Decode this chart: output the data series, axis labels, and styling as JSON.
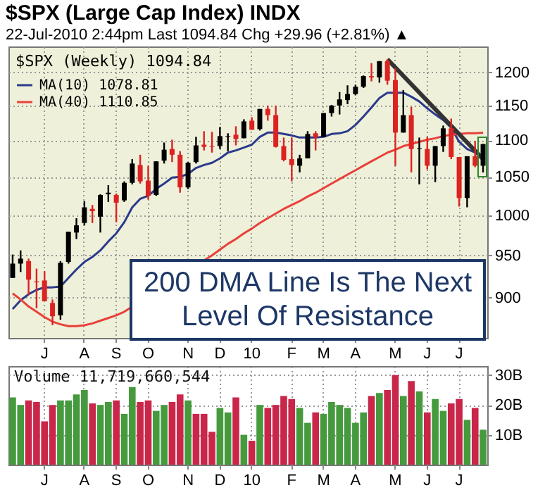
{
  "chart_data": [
    {
      "type": "candlestick",
      "title": "$SPX (Large Cap Index) INDX",
      "subtitle": "22-Jul-2010 2:44pm   Last 1094.84  Chg +29.96 (+2.81%) ▲",
      "legend_title": "$SPX (Weekly) 1094.84",
      "legend": "top left",
      "log": true,
      "grid": true,
      "categories": [
        null,
        null,
        null,
        null,
        "J",
        null,
        null,
        null,
        null,
        "A",
        null,
        null,
        null,
        "S",
        null,
        null,
        null,
        "O",
        null,
        null,
        null,
        null,
        "N",
        null,
        null,
        null,
        "D",
        null,
        null,
        null,
        "10",
        null,
        null,
        null,
        null,
        "F",
        null,
        null,
        null,
        "M",
        null,
        null,
        null,
        "A",
        null,
        null,
        null,
        null,
        "M",
        null,
        null,
        null,
        "J",
        null,
        null,
        null,
        "J",
        null,
        null,
        null
      ],
      "ohlc": [
        [
          923,
          951,
          923,
          940
        ],
        [
          940,
          956,
          930,
          946
        ],
        [
          943,
          946,
          903,
          921
        ],
        [
          919,
          934,
          888,
          918
        ],
        [
          920,
          931,
          896,
          896
        ],
        [
          894,
          898,
          869,
          879
        ],
        [
          880,
          943,
          875,
          941
        ],
        [
          942,
          979,
          940,
          979
        ],
        [
          978,
          996,
          970,
          987
        ],
        [
          990,
          1018,
          987,
          1010
        ],
        [
          1008,
          1013,
          990,
          1005
        ],
        [
          998,
          1027,
          978,
          1026
        ],
        [
          1027,
          1039,
          1017,
          1029
        ],
        [
          1026,
          1028,
          991,
          1016
        ],
        [
          1019,
          1044,
          1017,
          1042
        ],
        [
          1042,
          1074,
          1040,
          1068
        ],
        [
          1066,
          1080,
          1041,
          1044
        ],
        [
          1045,
          1065,
          1020,
          1025
        ],
        [
          1026,
          1071,
          1025,
          1071
        ],
        [
          1072,
          1097,
          1068,
          1087
        ],
        [
          1088,
          1101,
          1070,
          1080
        ],
        [
          1080,
          1085,
          1029,
          1036
        ],
        [
          1036,
          1070,
          1034,
          1069
        ],
        [
          1070,
          1105,
          1068,
          1093
        ],
        [
          1094,
          1113,
          1086,
          1091
        ],
        [
          1092,
          1112,
          1083,
          1091
        ],
        [
          1092,
          1119,
          1088,
          1106
        ],
        [
          1105,
          1110,
          1085,
          1106
        ],
        [
          1108,
          1120,
          1093,
          1102
        ],
        [
          1103,
          1130,
          1103,
          1127
        ],
        [
          1128,
          1133,
          1115,
          1115
        ],
        [
          1116,
          1145,
          1114,
          1145
        ],
        [
          1145,
          1150,
          1128,
          1136
        ],
        [
          1136,
          1150,
          1090,
          1091
        ],
        [
          1092,
          1104,
          1071,
          1073
        ],
        [
          1074,
          1104,
          1044,
          1066
        ],
        [
          1065,
          1080,
          1056,
          1075
        ],
        [
          1075,
          1113,
          1075,
          1109
        ],
        [
          1110,
          1113,
          1086,
          1104
        ],
        [
          1105,
          1139,
          1105,
          1139
        ],
        [
          1139,
          1151,
          1134,
          1150
        ],
        [
          1150,
          1170,
          1137,
          1159
        ],
        [
          1158,
          1180,
          1152,
          1167
        ],
        [
          1167,
          1181,
          1165,
          1178
        ],
        [
          1178,
          1195,
          1176,
          1194
        ],
        [
          1194,
          1214,
          1186,
          1192
        ],
        [
          1192,
          1217,
          1184,
          1217
        ],
        [
          1217,
          1220,
          1181,
          1187
        ],
        [
          1188,
          1206,
          1065,
          1111
        ],
        [
          1111,
          1173,
          1111,
          1136
        ],
        [
          1136,
          1148,
          1056,
          1088
        ],
        [
          1088,
          1104,
          1040,
          1089
        ],
        [
          1088,
          1105,
          1060,
          1065
        ],
        [
          1065,
          1092,
          1043,
          1092
        ],
        [
          1092,
          1121,
          1084,
          1117
        ],
        [
          1117,
          1131,
          1074,
          1077
        ],
        [
          1077,
          1077,
          1011,
          1022
        ],
        [
          1022,
          1078,
          1010,
          1078
        ],
        [
          1078,
          1099,
          1063,
          1065
        ],
        [
          1065,
          1095,
          1056,
          1094.84
        ]
      ],
      "colors": [
        "#000000",
        "#000000",
        "#dd2222",
        "#dd2222",
        "#dd2222",
        "#dd2222",
        "#000000",
        "#000000",
        "#000000",
        "#000000",
        "#dd2222",
        "#000000",
        "#000000",
        "#dd2222",
        "#000000",
        "#000000",
        "#dd2222",
        "#dd2222",
        "#000000",
        "#000000",
        "#dd2222",
        "#dd2222",
        "#000000",
        "#000000",
        "#dd2222",
        "#dd2222",
        "#000000",
        "#000000",
        "#dd2222",
        "#000000",
        "#dd2222",
        "#000000",
        "#dd2222",
        "#dd2222",
        "#dd2222",
        "#dd2222",
        "#000000",
        "#000000",
        "#dd2222",
        "#000000",
        "#000000",
        "#000000",
        "#000000",
        "#000000",
        "#000000",
        "#dd2222",
        "#000000",
        "#dd2222",
        "#dd2222",
        "#000000",
        "#dd2222",
        "#000000",
        "#dd2222",
        "#000000",
        "#000000",
        "#dd2222",
        "#dd2222",
        "#000000",
        "#dd2222",
        "#000000"
      ],
      "series": [
        {
          "name": "MA(10) 1078.81",
          "type": "line",
          "color": "#2b3a8c",
          "values": [
            887,
            897,
            904,
            909,
            912,
            912,
            913,
            923,
            933,
            942,
            948,
            956,
            967,
            977,
            991,
            1010,
            1021,
            1025,
            1034,
            1041,
            1049,
            1050,
            1054,
            1062,
            1066,
            1069,
            1075,
            1083,
            1086,
            1090,
            1094,
            1105,
            1111,
            1111,
            1109,
            1107,
            1104,
            1104,
            1104,
            1105,
            1109,
            1110,
            1113,
            1122,
            1134,
            1147,
            1161,
            1169,
            1169,
            1169,
            1163,
            1156,
            1146,
            1137,
            1129,
            1118,
            1098,
            1088,
            1083,
            1078.81
          ]
        },
        {
          "name": "MA(40) 1110.85",
          "type": "line",
          "color": "#e8403a",
          "values": [
            905,
            898,
            890,
            884,
            878,
            873,
            870,
            868,
            868,
            869,
            871,
            874,
            877,
            880,
            884,
            null,
            null,
            null,
            null,
            null,
            null,
            null,
            null,
            null,
            null,
            950,
            957,
            964,
            970,
            977,
            983,
            990,
            996,
            1002,
            1008,
            1013,
            1018,
            1024,
            1029,
            1035,
            1041,
            1047,
            1053,
            1059,
            1065,
            1071,
            1077,
            1083,
            1087,
            1092,
            1095,
            1098,
            1101,
            1103,
            1106,
            1108,
            1109,
            1110,
            1110,
            1110.85
          ]
        },
        {
          "type": "line",
          "color": "#333333",
          "values": [
            null,
            null,
            null,
            null,
            null,
            null,
            null,
            null,
            null,
            null,
            null,
            null,
            null,
            null,
            null,
            null,
            null,
            null,
            null,
            null,
            null,
            null,
            null,
            null,
            null,
            null,
            null,
            null,
            null,
            null,
            null,
            null,
            null,
            null,
            null,
            null,
            null,
            null,
            null,
            null,
            null,
            null,
            null,
            null,
            null,
            null,
            null,
            1220,
            null,
            null,
            null,
            null,
            null,
            null,
            null,
            null,
            null,
            null,
            null,
            1074
          ]
        }
      ],
      "ylim": [
        855,
        1240
      ],
      "yticks": [
        900,
        950,
        1000,
        1050,
        1100,
        1150,
        1200
      ],
      "annotations": [
        "200 DMA Line Is The Next Level Of Resistance"
      ]
    },
    {
      "type": "bar",
      "title": "Volume 11,719,660,544",
      "grid": true,
      "categories": [
        null,
        null,
        null,
        null,
        "J",
        null,
        null,
        null,
        null,
        "A",
        null,
        null,
        null,
        "S",
        null,
        null,
        null,
        "O",
        null,
        null,
        null,
        null,
        "N",
        null,
        null,
        null,
        "D",
        null,
        null,
        null,
        "10",
        null,
        null,
        null,
        null,
        "F",
        null,
        null,
        null,
        "M",
        null,
        null,
        null,
        "A",
        null,
        null,
        null,
        null,
        "M",
        null,
        null,
        null,
        "J",
        null,
        null,
        null,
        "J",
        null,
        null,
        null
      ],
      "values": [
        22.5,
        20,
        21.5,
        21,
        14.5,
        20,
        21.5,
        21.5,
        23.5,
        25,
        20.5,
        20,
        21,
        21.5,
        17,
        26,
        21,
        21.5,
        18,
        20,
        21,
        23.5,
        21.5,
        17,
        17,
        11,
        19,
        17.5,
        22.5,
        10,
        8,
        20,
        19,
        20,
        23,
        22,
        19,
        14,
        17.5,
        17,
        21,
        20,
        19,
        14,
        17.5,
        23,
        24,
        25,
        30,
        23,
        28,
        24.5,
        17.5,
        22,
        18,
        20.5,
        22,
        15,
        19,
        11.7
      ],
      "colors": [
        "#459a3e",
        "#459a3e",
        "#c9264a",
        "#c9264a",
        "#c9264a",
        "#c9264a",
        "#459a3e",
        "#459a3e",
        "#459a3e",
        "#459a3e",
        "#c9264a",
        "#459a3e",
        "#459a3e",
        "#c9264a",
        "#459a3e",
        "#459a3e",
        "#c9264a",
        "#c9264a",
        "#459a3e",
        "#459a3e",
        "#c9264a",
        "#c9264a",
        "#459a3e",
        "#c9264a",
        "#c9264a",
        "#c9264a",
        "#459a3e",
        "#459a3e",
        "#c9264a",
        "#459a3e",
        "#c9264a",
        "#459a3e",
        "#c9264a",
        "#c9264a",
        "#c9264a",
        "#c9264a",
        "#459a3e",
        "#459a3e",
        "#c9264a",
        "#459a3e",
        "#459a3e",
        "#459a3e",
        "#459a3e",
        "#459a3e",
        "#459a3e",
        "#c9264a",
        "#459a3e",
        "#c9264a",
        "#c9264a",
        "#459a3e",
        "#c9264a",
        "#459a3e",
        "#c9264a",
        "#459a3e",
        "#459a3e",
        "#c9264a",
        "#c9264a",
        "#459a3e",
        "#c9264a",
        "#459a3e"
      ],
      "ylim": [
        0,
        33
      ],
      "yticks": [
        {
          "value": 10,
          "label": "10B"
        },
        {
          "value": 20,
          "label": "20B"
        },
        {
          "value": 30,
          "label": "30B"
        }
      ]
    }
  ]
}
